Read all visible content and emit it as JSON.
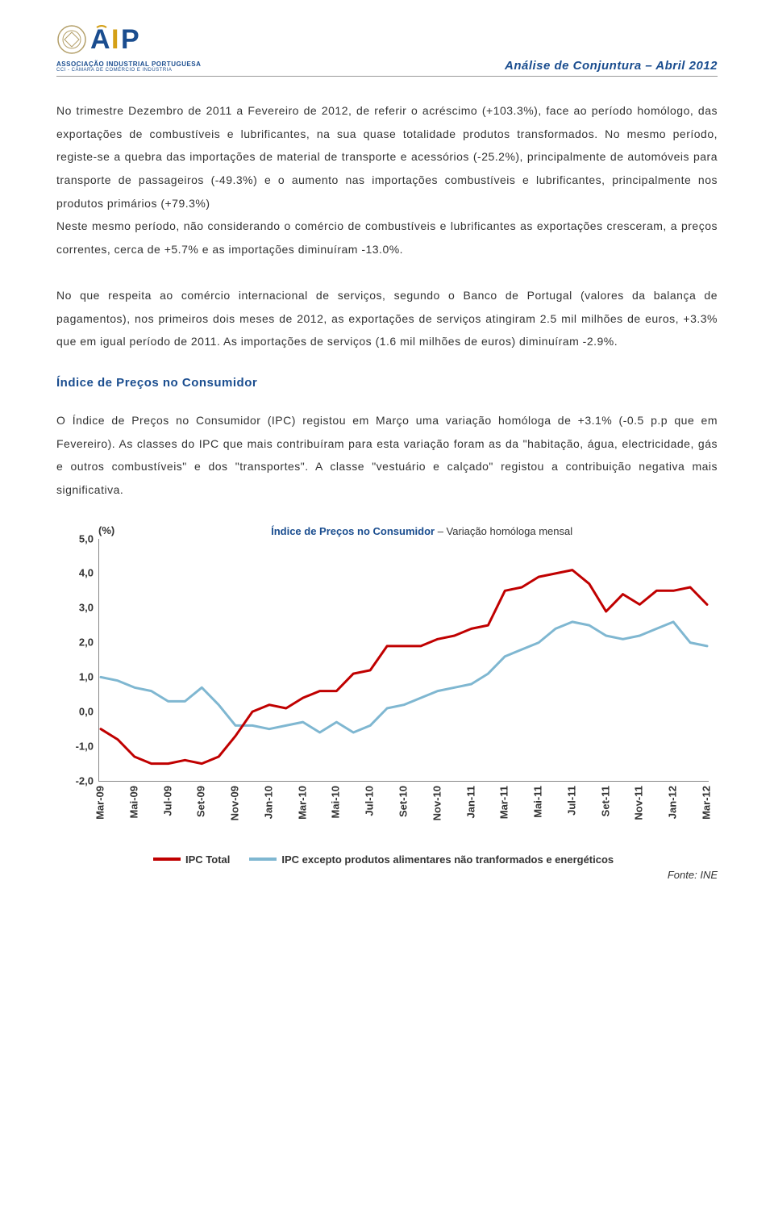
{
  "header": {
    "org_line1": "ASSOCIAÇÃO INDUSTRIAL PORTUGUESA",
    "org_line2": "CCI - CÂMARA DE COMÉRCIO E INDÚSTRIA",
    "title": "Análise de Conjuntura – Abril 2012"
  },
  "paragraphs": {
    "p1": "No trimestre Dezembro de 2011 a Fevereiro de 2012, de referir o acréscimo (+103.3%), face ao período homólogo, das exportações de combustíveis e lubrificantes, na sua quase totalidade produtos transformados. No mesmo período, registe-se a quebra das importações de material de transporte e acessórios (-25.2%), principalmente de automóveis para transporte de passageiros (-49.3%) e o aumento nas importações combustíveis e lubrificantes, principalmente nos produtos primários (+79.3%)",
    "p1b": "Neste mesmo período, não considerando o comércio de combustíveis e lubrificantes as exportações cresceram, a preços correntes, cerca de +5.7% e as importações diminuíram -13.0%.",
    "p2": "No que respeita ao comércio internacional de serviços, segundo o Banco de Portugal (valores da balança de pagamentos), nos primeiros dois meses de 2012, as exportações de serviços atingiram 2.5 mil milhões de euros, +3.3% que em igual período de 2011. As importações de serviços (1.6 mil milhões de euros) diminuíram -2.9%.",
    "heading": "Índice de Preços no Consumidor",
    "p3": "O Índice de Preços no Consumidor (IPC) registou em Março uma variação homóloga de +3.1% (-0.5 p.p que em Fevereiro). As classes do IPC que mais contribuíram para esta variação foram as da \"habitação, água, electricidade, gás e outros combustíveis\" e dos \"transportes\". A classe \"vestuário e calçado\" registou a contribuição negativa mais significativa."
  },
  "chart": {
    "y_unit": "(%)",
    "title": "Índice de Preços no Consumidor",
    "subtitle": " – Variação homóloga mensal",
    "ylim": [
      -2.0,
      5.0
    ],
    "ytick_step": 1.0,
    "y_ticks": [
      "5,0",
      "4,0",
      "3,0",
      "2,0",
      "1,0",
      "0,0",
      "-1,0",
      "-2,0"
    ],
    "x_labels": [
      "Mar-09",
      "Mai-09",
      "Jul-09",
      "Set-09",
      "Nov-09",
      "Jan-10",
      "Mar-10",
      "Mai-10",
      "Jul-10",
      "Set-10",
      "Nov-10",
      "Jan-11",
      "Mar-11",
      "Mai-11",
      "Jul-11",
      "Set-11",
      "Nov-11",
      "Jan-12",
      "Mar-12"
    ],
    "series1": {
      "name": "IPC Total",
      "color": "#c00000",
      "stroke_width": 3,
      "values": [
        -0.5,
        -0.8,
        -1.3,
        -1.5,
        -1.5,
        -1.4,
        -1.5,
        -1.3,
        -0.7,
        0.0,
        0.2,
        0.1,
        0.4,
        0.6,
        0.6,
        1.1,
        1.2,
        1.9,
        1.9,
        1.9,
        2.1,
        2.2,
        2.4,
        2.5,
        3.5,
        3.6,
        3.9,
        4.0,
        4.1,
        3.7,
        2.9,
        3.4,
        3.1,
        3.5,
        3.5,
        3.6,
        3.1
      ]
    },
    "series2": {
      "name": "IPC excepto produtos alimentares não tranformados e energéticos",
      "color": "#7fb7d1",
      "stroke_width": 3,
      "values": [
        1.0,
        0.9,
        0.7,
        0.6,
        0.3,
        0.3,
        0.7,
        0.2,
        -0.4,
        -0.4,
        -0.5,
        -0.4,
        -0.3,
        -0.6,
        -0.3,
        -0.6,
        -0.4,
        0.1,
        0.2,
        0.4,
        0.6,
        0.7,
        0.8,
        1.1,
        1.6,
        1.8,
        2.0,
        2.4,
        2.6,
        2.5,
        2.2,
        2.1,
        2.2,
        2.4,
        2.6,
        2.0,
        1.9
      ]
    },
    "legend": {
      "items": [
        {
          "label": "IPC Total",
          "color": "#c00000"
        },
        {
          "label": "IPC excepto produtos alimentares não tranformados e energéticos",
          "color": "#7fb7d1"
        }
      ]
    },
    "source": "Fonte: INE",
    "background_color": "#ffffff",
    "axis_color": "#888888",
    "label_fontsize": 13
  }
}
